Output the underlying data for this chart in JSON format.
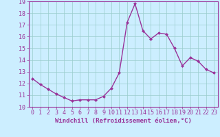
{
  "x": [
    0,
    1,
    2,
    3,
    4,
    5,
    6,
    7,
    8,
    9,
    10,
    11,
    12,
    13,
    14,
    15,
    16,
    17,
    18,
    19,
    20,
    21,
    22,
    23
  ],
  "y": [
    12.4,
    11.9,
    11.5,
    11.1,
    10.8,
    10.5,
    10.6,
    10.6,
    10.6,
    10.9,
    11.6,
    12.9,
    17.2,
    18.8,
    16.5,
    15.8,
    16.3,
    16.2,
    15.0,
    13.5,
    14.2,
    13.9,
    13.2,
    12.9
  ],
  "line_color": "#993399",
  "marker": "D",
  "marker_size": 2.0,
  "bg_color": "#cceeff",
  "grid_color": "#99cccc",
  "xlabel": "Windchill (Refroidissement éolien,°C)",
  "xlabel_color": "#993399",
  "tick_color": "#993399",
  "spine_color": "#993399",
  "ylim": [
    10,
    19
  ],
  "xlim": [
    -0.5,
    23.5
  ],
  "yticks": [
    10,
    11,
    12,
    13,
    14,
    15,
    16,
    17,
    18,
    19
  ],
  "xticks": [
    0,
    1,
    2,
    3,
    4,
    5,
    6,
    7,
    8,
    9,
    10,
    11,
    12,
    13,
    14,
    15,
    16,
    17,
    18,
    19,
    20,
    21,
    22,
    23
  ],
  "line_width": 1.0,
  "tick_fontsize": 6.0,
  "xlabel_fontsize": 6.5
}
